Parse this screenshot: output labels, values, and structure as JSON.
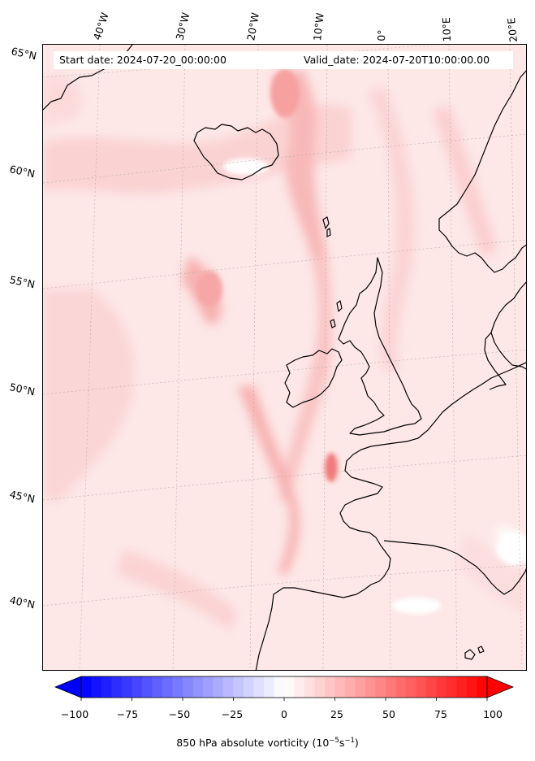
{
  "header": {
    "start_date": "Start date: 2024-07-20_00:00:00",
    "valid_date": "Valid_date: 2024-07-20T10:00:00.00"
  },
  "lat_labels": [
    "65°N",
    "60°N",
    "55°N",
    "50°N",
    "45°N",
    "40°N"
  ],
  "lon_labels": [
    "40°W",
    "30°W",
    "20°W",
    "10°W",
    "0°",
    "10°E",
    "20°E"
  ],
  "colorbar": {
    "ticks": [
      "−100",
      "−75",
      "−50",
      "−25",
      "0",
      "25",
      "50",
      "75",
      "100"
    ],
    "label_main": "850 hPa absolute vorticity (10",
    "label_exp1": "−5",
    "label_mid": "s",
    "label_exp2": "−1",
    "label_end": ")",
    "min": -100,
    "max": 100,
    "low_color": "#0000ff",
    "mid_color": "#ffffff",
    "high_color": "#ff0000"
  }
}
